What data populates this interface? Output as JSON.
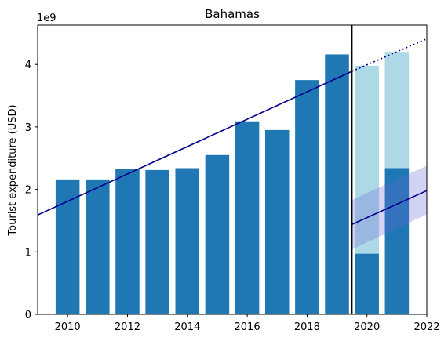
{
  "chart_data": {
    "type": "bar",
    "title": "Bahamas",
    "ylabel": "Tourist expenditure (USD)",
    "xlabel": "",
    "y_multiplier_label": "1e9",
    "xlim": [
      2009,
      2022
    ],
    "ylim": [
      0,
      4.63
    ],
    "x_ticks": [
      2010,
      2012,
      2014,
      2016,
      2018,
      2020,
      2022
    ],
    "y_ticks": [
      0,
      1,
      2,
      3,
      4
    ],
    "grid": false,
    "series": [
      {
        "kind": "bar",
        "color": "#1f77b4",
        "x": [
          2010,
          2011,
          2012,
          2013,
          2014,
          2015,
          2016,
          2017,
          2018,
          2019,
          2020,
          2021
        ],
        "values": [
          2.16,
          2.16,
          2.33,
          2.31,
          2.34,
          2.55,
          3.09,
          2.95,
          3.75,
          4.16,
          0.97,
          2.34
        ]
      },
      {
        "kind": "bar",
        "color": "#add8e6",
        "x": [
          2020,
          2021
        ],
        "values": [
          3.98,
          4.2
        ]
      }
    ],
    "trend_pre": {
      "color": "#00008b",
      "start": [
        2009,
        1.59
      ],
      "end": [
        2019.5,
        3.89
      ],
      "dotted_end": [
        2022,
        4.41
      ]
    },
    "trend_post": {
      "color": "#00008b",
      "start": [
        2019.5,
        1.44
      ],
      "end": [
        2022,
        1.98
      ],
      "band_color": "#6a6ad6",
      "band_lower": [
        [
          2019.5,
          1.04
        ],
        [
          2022,
          1.6
        ]
      ],
      "band_upper": [
        [
          2019.5,
          1.83
        ],
        [
          2022,
          2.38
        ]
      ]
    },
    "vline": {
      "x": 2019.5,
      "color": "#000000"
    }
  }
}
